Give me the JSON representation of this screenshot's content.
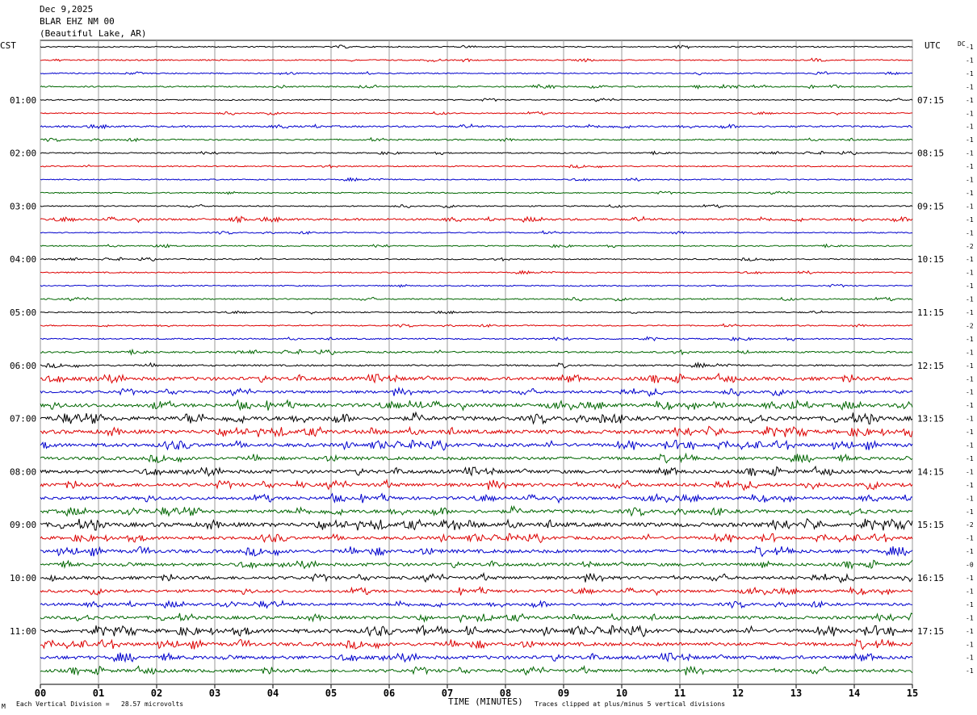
{
  "header": {
    "date": "Dec 9,2025",
    "station": "BLAR EHZ NM 00",
    "location": "(Beautiful Lake, AR)"
  },
  "left_zone_label": "CST",
  "right_zone_label": "UTC",
  "dc_label": "DC",
  "footer": {
    "scale_note": "Each Vertical Division =   28.57 microvolts",
    "clip_note": "Traces clipped at plus/minus 5 vertical divisions",
    "corner_mark": "M"
  },
  "colors": {
    "trace": [
      "#000000",
      "#dd0000",
      "#0000cc",
      "#006600"
    ],
    "grid": "#9a9a9a"
  },
  "chart_data": {
    "type": "line",
    "title": "BLAR EHZ NM 00",
    "xlabel": "TIME (MINUTES)",
    "ylabel": "",
    "xlim": [
      0,
      15
    ],
    "x_ticks": [
      "00",
      "01",
      "02",
      "03",
      "04",
      "05",
      "06",
      "07",
      "08",
      "09",
      "10",
      "11",
      "12",
      "13",
      "14",
      "15"
    ],
    "rows": 48,
    "left_hour_labels": [
      {
        "row": 4,
        "label": "01:00"
      },
      {
        "row": 8,
        "label": "02:00"
      },
      {
        "row": 12,
        "label": "03:00"
      },
      {
        "row": 16,
        "label": "04:00"
      },
      {
        "row": 20,
        "label": "05:00"
      },
      {
        "row": 24,
        "label": "06:00"
      },
      {
        "row": 28,
        "label": "07:00"
      },
      {
        "row": 32,
        "label": "08:00"
      },
      {
        "row": 36,
        "label": "09:00"
      },
      {
        "row": 40,
        "label": "10:00"
      },
      {
        "row": 44,
        "label": "11:00"
      }
    ],
    "right_hour_labels": [
      {
        "row": 4,
        "label": "07:15"
      },
      {
        "row": 8,
        "label": "08:15"
      },
      {
        "row": 12,
        "label": "09:15"
      },
      {
        "row": 16,
        "label": "10:15"
      },
      {
        "row": 20,
        "label": "11:15"
      },
      {
        "row": 24,
        "label": "12:15"
      },
      {
        "row": 28,
        "label": "13:15"
      },
      {
        "row": 32,
        "label": "14:15"
      },
      {
        "row": 36,
        "label": "15:15"
      },
      {
        "row": 40,
        "label": "16:15"
      },
      {
        "row": 44,
        "label": "17:15"
      }
    ],
    "dc_offsets": [
      "-1",
      "-1",
      "-1",
      "-1",
      "-1",
      "-1",
      "-1",
      "-1",
      "-1",
      "-1",
      "-1",
      "-1",
      "-1",
      "-1",
      "-1",
      "-2",
      "-1",
      "-1",
      "-1",
      "-1",
      "-1",
      "-2",
      "-1",
      "-1",
      "-1",
      "-1",
      "-1",
      "-1",
      "-1",
      "-1",
      "-1",
      "-1",
      "-1",
      "-1",
      "-1",
      "-1",
      "-2",
      "-1",
      "-1",
      "-0",
      "-1",
      "-1",
      "-1",
      "-1",
      "-1",
      "-1",
      "-1",
      "-1"
    ],
    "noise_levels": [
      0.7,
      0.7,
      0.7,
      0.8,
      0.7,
      0.7,
      1.0,
      0.8,
      0.7,
      0.7,
      0.7,
      0.7,
      0.7,
      1.2,
      0.7,
      0.7,
      0.7,
      0.7,
      0.7,
      0.8,
      0.7,
      0.7,
      0.8,
      1.0,
      1.0,
      2.0,
      1.6,
      2.0,
      2.4,
      2.2,
      2.0,
      1.8,
      2.0,
      2.0,
      1.8,
      2.0,
      2.4,
      1.8,
      2.0,
      1.8,
      1.8,
      1.6,
      1.6,
      1.8,
      2.2,
      2.0,
      2.0,
      1.8
    ]
  }
}
